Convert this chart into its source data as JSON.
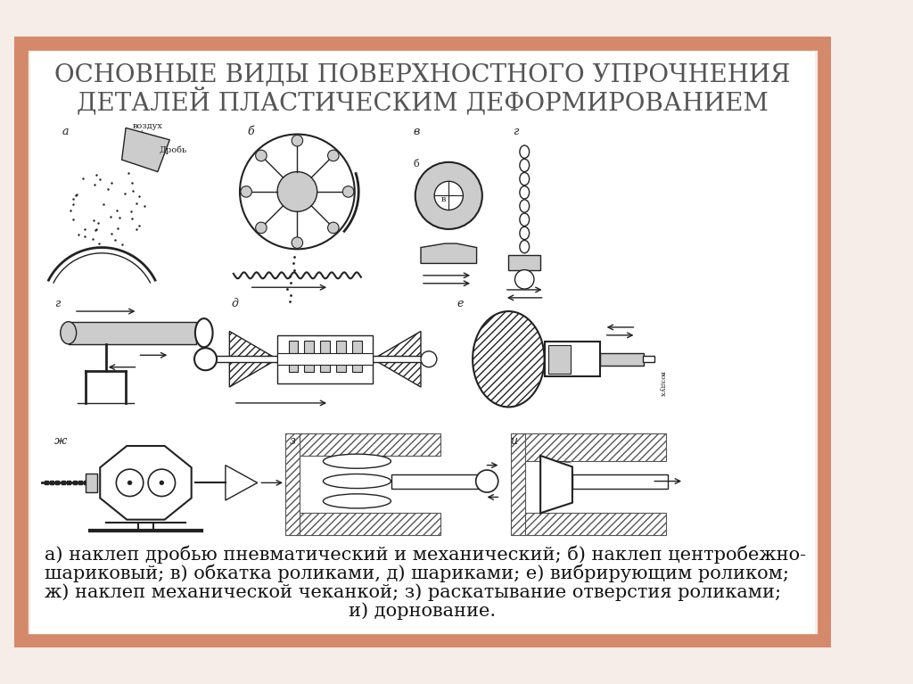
{
  "title_line1": "ОСНОВНЫЕ ВИДЫ ПОВЕРХНОСТНОГО УПРОЧНЕНИЯ",
  "title_line2": "ДЕТАЛЕЙ ПЛАСТИЧЕСКИМ ДЕФОРМИРОВАНИЕМ",
  "caption_lines": [
    "а) наклеп дробью пневматический и механический; б) наклеп центробежно-",
    "шариковый; в) обкатка роликами, д) шариками; е) вибрирующим роликом;",
    "ж) наклеп механической чеканкой; з) раскатывание отверстия роликами;",
    "и) дорнование."
  ],
  "bg_color": "#f7ede8",
  "inner_bg": "#ffffff",
  "border_color": "#d4896a",
  "title_color": "#555555",
  "caption_color": "#111111",
  "title_fontsize": 20,
  "caption_fontsize": 15,
  "fig_width": 10.24,
  "fig_height": 7.67,
  "diagram_labels": [
    "а",
    "б",
    "в",
    "г",
    "д",
    "е",
    "ж",
    "з",
    "и"
  ],
  "label_fontsize": 9,
  "small_label_fontsize": 7,
  "line_color": "#222222",
  "hatch_color": "#555555",
  "gray_fill": "#aaaaaa",
  "light_gray": "#cccccc",
  "dark_gray": "#888888"
}
